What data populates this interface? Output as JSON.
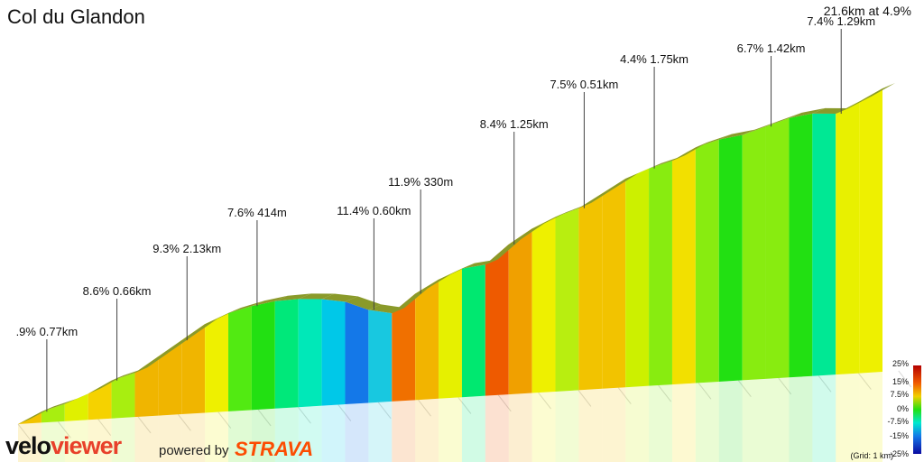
{
  "header": {
    "title": "Col du Glandon",
    "summary": "21.6km at 4.9%"
  },
  "branding": {
    "logo_part1": "velo",
    "logo_part2": "viewer",
    "powered_by": "powered by",
    "strava": "STRAVA"
  },
  "legend": {
    "grid_note": "(Grid: 1 km)",
    "ticks": [
      "25%",
      "15%",
      "7.5%",
      "0%",
      "-7.5%",
      "-15%",
      "-25%"
    ]
  },
  "colors": {
    "ridge": "#8a9a2a",
    "grid": "#d8d8d8",
    "leader": "#444444"
  },
  "chart_data": {
    "type": "area",
    "title": "Col du Glandon",
    "xlabel": "",
    "ylabel": "",
    "x_unit": "km",
    "total_distance_km": 21.6,
    "average_gradient_pct": 4.9,
    "gradient_scale": [
      -25,
      25
    ],
    "annotations": [
      {
        "label": ".9% 0.77km",
        "distance_km": 0.8
      },
      {
        "label": "8.6% 0.66km",
        "distance_km": 2.3
      },
      {
        "label": "9.3% 2.13km",
        "distance_km": 4.2
      },
      {
        "label": "7.6% 414m",
        "distance_km": 5.9
      },
      {
        "label": "11.4% 0.60km",
        "distance_km": 9.0
      },
      {
        "label": "11.9% 330m",
        "distance_km": 10.0
      },
      {
        "label": "8.4% 1.25km",
        "distance_km": 12.4
      },
      {
        "label": "7.5% 0.51km",
        "distance_km": 14.0
      },
      {
        "label": "4.4% 1.75km",
        "distance_km": 15.9
      },
      {
        "label": "6.7% 1.42km",
        "distance_km": 18.9
      },
      {
        "label": "7.4% 1.29km",
        "distance_km": 20.2
      }
    ],
    "segments": [
      {
        "gradient": 6.9,
        "color": "#f2c300"
      },
      {
        "gradient": 4.0,
        "color": "#a8ee10"
      },
      {
        "gradient": 5.5,
        "color": "#e0f000"
      },
      {
        "gradient": 7.4,
        "color": "#f5d200"
      },
      {
        "gradient": 4.0,
        "color": "#a8ee10"
      },
      {
        "gradient": 9.3,
        "color": "#f0b500"
      },
      {
        "gradient": 9.3,
        "color": "#f0b500"
      },
      {
        "gradient": 9.3,
        "color": "#f0b500"
      },
      {
        "gradient": 6.0,
        "color": "#eef000"
      },
      {
        "gradient": 3.5,
        "color": "#52ea12"
      },
      {
        "gradient": 2.2,
        "color": "#22e012"
      },
      {
        "gradient": 0.5,
        "color": "#00e87a"
      },
      {
        "gradient": -1.0,
        "color": "#00e8b8"
      },
      {
        "gradient": -2.5,
        "color": "#00c8e8"
      },
      {
        "gradient": -6.0,
        "color": "#1478e8"
      },
      {
        "gradient": -3.0,
        "color": "#18c8e0"
      },
      {
        "gradient": 11.4,
        "color": "#f07000"
      },
      {
        "gradient": 8.0,
        "color": "#f2b400"
      },
      {
        "gradient": 6.0,
        "color": "#e6f000"
      },
      {
        "gradient": 1.5,
        "color": "#00e870"
      },
      {
        "gradient": 11.9,
        "color": "#ee5a00"
      },
      {
        "gradient": 9.0,
        "color": "#f0a000"
      },
      {
        "gradient": 6.5,
        "color": "#eef000"
      },
      {
        "gradient": 4.5,
        "color": "#b8ee10"
      },
      {
        "gradient": 8.4,
        "color": "#f2c300"
      },
      {
        "gradient": 8.4,
        "color": "#f2c300"
      },
      {
        "gradient": 5.5,
        "color": "#ccf000"
      },
      {
        "gradient": 4.0,
        "color": "#88ec10"
      },
      {
        "gradient": 7.5,
        "color": "#f2e000"
      },
      {
        "gradient": 4.0,
        "color": "#88ec10"
      },
      {
        "gradient": 2.0,
        "color": "#22e012"
      },
      {
        "gradient": 4.4,
        "color": "#88ec10"
      },
      {
        "gradient": 4.4,
        "color": "#88ec10"
      },
      {
        "gradient": 2.0,
        "color": "#22e012"
      },
      {
        "gradient": -1.0,
        "color": "#00e894"
      },
      {
        "gradient": 6.7,
        "color": "#e8f000"
      },
      {
        "gradient": 7.4,
        "color": "#eef000"
      }
    ]
  }
}
